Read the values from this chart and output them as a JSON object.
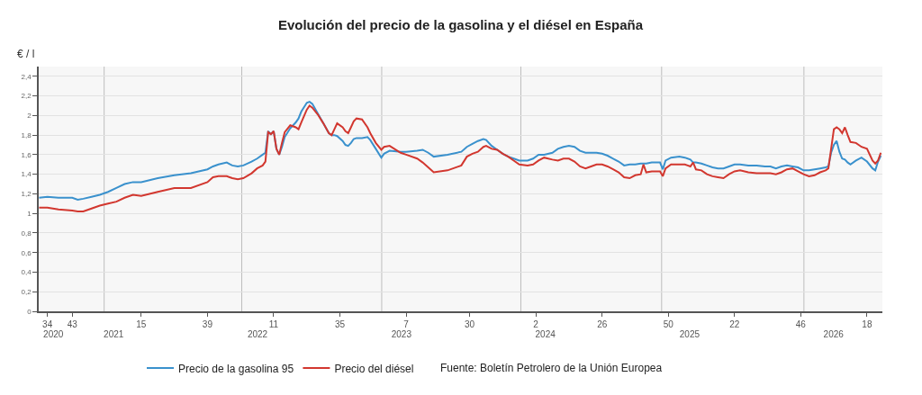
{
  "chart_data": {
    "type": "line",
    "title": "Evolución del precio de la gasolina y el diésel en España",
    "ylabel": "€ / l",
    "x": [
      "2020-07-27",
      "2020-08-17",
      "2020-09-14",
      "2020-10-19",
      "2020-11-02",
      "2020-11-16",
      "2020-12-07",
      "2020-12-28",
      "2021-01-18",
      "2021-02-08",
      "2021-03-01",
      "2021-03-22",
      "2021-04-12",
      "2021-05-24",
      "2021-07-05",
      "2021-08-16",
      "2021-09-27",
      "2021-10-11",
      "2021-10-25",
      "2021-11-15",
      "2021-11-29",
      "2021-12-13",
      "2021-12-27",
      "2022-01-17",
      "2022-01-31",
      "2022-02-14",
      "2022-02-21",
      "2022-02-28",
      "2022-03-07",
      "2022-03-14",
      "2022-03-21",
      "2022-03-28",
      "2022-04-04",
      "2022-04-11",
      "2022-04-25",
      "2022-05-09",
      "2022-05-16",
      "2022-05-23",
      "2022-06-06",
      "2022-06-13",
      "2022-06-20",
      "2022-07-04",
      "2022-07-18",
      "2022-08-01",
      "2022-08-08",
      "2022-08-15",
      "2022-08-22",
      "2022-09-05",
      "2022-09-12",
      "2022-09-19",
      "2022-09-26",
      "2022-10-03",
      "2022-10-10",
      "2022-10-24",
      "2022-11-07",
      "2022-11-14",
      "2022-11-28",
      "2022-12-12",
      "2022-12-19",
      "2023-01-02",
      "2023-01-30",
      "2023-02-13",
      "2023-03-13",
      "2023-03-27",
      "2023-04-10",
      "2023-04-24",
      "2023-05-29",
      "2023-07-03",
      "2023-07-17",
      "2023-07-31",
      "2023-08-14",
      "2023-08-28",
      "2023-09-04",
      "2023-09-18",
      "2023-10-02",
      "2023-10-16",
      "2023-10-30",
      "2023-11-13",
      "2023-11-27",
      "2023-12-18",
      "2024-01-01",
      "2024-01-15",
      "2024-01-29",
      "2024-02-19",
      "2024-03-04",
      "2024-03-18",
      "2024-04-01",
      "2024-04-15",
      "2024-04-29",
      "2024-05-13",
      "2024-05-27",
      "2024-06-10",
      "2024-06-24",
      "2024-07-08",
      "2024-07-22",
      "2024-08-05",
      "2024-08-19",
      "2024-09-02",
      "2024-09-16",
      "2024-09-30",
      "2024-10-07",
      "2024-10-14",
      "2024-10-28",
      "2024-11-18",
      "2024-11-25",
      "2024-12-02",
      "2024-12-16",
      "2025-01-06",
      "2025-01-20",
      "2025-02-03",
      "2025-02-10",
      "2025-02-17",
      "2025-03-03",
      "2025-03-17",
      "2025-03-31",
      "2025-04-14",
      "2025-04-28",
      "2025-05-12",
      "2025-05-26",
      "2025-06-09",
      "2025-06-30",
      "2025-07-21",
      "2025-08-11",
      "2025-08-25",
      "2025-09-08",
      "2025-09-22",
      "2025-10-06",
      "2025-10-20",
      "2025-11-03",
      "2025-11-17",
      "2025-12-01",
      "2025-12-15",
      "2025-12-29",
      "2026-01-12",
      "2026-01-19",
      "2026-01-26",
      "2026-02-02",
      "2026-02-09",
      "2026-02-16",
      "2026-02-23",
      "2026-03-02",
      "2026-03-09",
      "2026-03-16",
      "2026-03-30",
      "2026-04-13",
      "2026-04-27",
      "2026-05-11",
      "2026-05-18",
      "2026-05-25",
      "2026-06-01"
    ],
    "series": [
      {
        "name": "Precio de la gasolina 95",
        "color": "#3a91cd",
        "values": [
          1.16,
          1.17,
          1.16,
          1.16,
          1.14,
          1.15,
          1.17,
          1.19,
          1.22,
          1.26,
          1.3,
          1.32,
          1.32,
          1.36,
          1.39,
          1.41,
          1.45,
          1.48,
          1.5,
          1.52,
          1.49,
          1.48,
          1.49,
          1.53,
          1.56,
          1.6,
          1.62,
          1.84,
          1.81,
          1.84,
          1.66,
          1.6,
          1.68,
          1.78,
          1.87,
          1.93,
          1.97,
          2.04,
          2.13,
          2.14,
          2.12,
          2.02,
          1.92,
          1.82,
          1.8,
          1.8,
          1.79,
          1.74,
          1.7,
          1.69,
          1.72,
          1.76,
          1.77,
          1.77,
          1.78,
          1.75,
          1.66,
          1.57,
          1.61,
          1.64,
          1.63,
          1.63,
          1.64,
          1.65,
          1.62,
          1.58,
          1.6,
          1.63,
          1.68,
          1.71,
          1.74,
          1.76,
          1.75,
          1.69,
          1.65,
          1.61,
          1.58,
          1.56,
          1.54,
          1.54,
          1.56,
          1.6,
          1.6,
          1.62,
          1.66,
          1.68,
          1.69,
          1.68,
          1.64,
          1.62,
          1.62,
          1.62,
          1.61,
          1.59,
          1.56,
          1.53,
          1.49,
          1.5,
          1.5,
          1.51,
          1.51,
          1.51,
          1.52,
          1.52,
          1.45,
          1.54,
          1.57,
          1.58,
          1.57,
          1.55,
          1.52,
          1.52,
          1.51,
          1.49,
          1.47,
          1.46,
          1.46,
          1.48,
          1.5,
          1.5,
          1.49,
          1.49,
          1.48,
          1.48,
          1.46,
          1.48,
          1.49,
          1.48,
          1.47,
          1.44,
          1.44,
          1.45,
          1.46,
          1.47,
          1.48,
          1.62,
          1.7,
          1.74,
          1.63,
          1.56,
          1.55,
          1.52,
          1.5,
          1.54,
          1.57,
          1.53,
          1.46,
          1.44,
          1.53,
          1.59
        ]
      },
      {
        "name": "Precio del diésel",
        "color": "#d2372f",
        "values": [
          1.06,
          1.06,
          1.04,
          1.03,
          1.02,
          1.02,
          1.05,
          1.08,
          1.1,
          1.12,
          1.16,
          1.19,
          1.18,
          1.22,
          1.26,
          1.26,
          1.32,
          1.37,
          1.38,
          1.38,
          1.36,
          1.35,
          1.36,
          1.41,
          1.46,
          1.49,
          1.53,
          1.83,
          1.81,
          1.84,
          1.66,
          1.6,
          1.72,
          1.83,
          1.9,
          1.88,
          1.86,
          1.93,
          2.06,
          2.1,
          2.08,
          2.01,
          1.92,
          1.82,
          1.8,
          1.86,
          1.92,
          1.88,
          1.84,
          1.82,
          1.88,
          1.94,
          1.97,
          1.96,
          1.88,
          1.82,
          1.72,
          1.65,
          1.68,
          1.69,
          1.62,
          1.6,
          1.56,
          1.52,
          1.47,
          1.42,
          1.44,
          1.49,
          1.58,
          1.61,
          1.63,
          1.68,
          1.69,
          1.66,
          1.65,
          1.61,
          1.58,
          1.54,
          1.5,
          1.49,
          1.5,
          1.54,
          1.57,
          1.55,
          1.54,
          1.56,
          1.56,
          1.53,
          1.48,
          1.46,
          1.48,
          1.5,
          1.5,
          1.48,
          1.45,
          1.42,
          1.37,
          1.36,
          1.39,
          1.4,
          1.5,
          1.42,
          1.43,
          1.43,
          1.38,
          1.46,
          1.5,
          1.5,
          1.5,
          1.48,
          1.52,
          1.45,
          1.44,
          1.4,
          1.38,
          1.37,
          1.36,
          1.4,
          1.43,
          1.44,
          1.42,
          1.41,
          1.41,
          1.41,
          1.4,
          1.42,
          1.45,
          1.46,
          1.43,
          1.4,
          1.38,
          1.39,
          1.42,
          1.44,
          1.46,
          1.66,
          1.86,
          1.88,
          1.86,
          1.82,
          1.88,
          1.8,
          1.73,
          1.72,
          1.68,
          1.66,
          1.54,
          1.51,
          1.54,
          1.62
        ]
      }
    ],
    "xlim": [
      "2020-07-26",
      "2026-06-05"
    ],
    "xticks": [
      {
        "value": "2020-08-17",
        "label": "34"
      },
      {
        "value": "2020-10-19",
        "label": "43"
      },
      {
        "value": "2021-04-12",
        "label": "15"
      },
      {
        "value": "2021-09-27",
        "label": "39"
      },
      {
        "value": "2022-03-14",
        "label": "11"
      },
      {
        "value": "2022-08-29",
        "label": "35"
      },
      {
        "value": "2023-02-13",
        "label": "7"
      },
      {
        "value": "2023-07-24",
        "label": "30"
      },
      {
        "value": "2024-01-08",
        "label": "2"
      },
      {
        "value": "2024-06-24",
        "label": "26"
      },
      {
        "value": "2024-12-09",
        "label": "50"
      },
      {
        "value": "2025-05-26",
        "label": "22"
      },
      {
        "value": "2025-11-10",
        "label": "46"
      },
      {
        "value": "2026-04-27",
        "label": "18"
      }
    ],
    "x2lim": [
      "2020-07-26",
      "2026-06-05"
    ],
    "x2ticks": [
      {
        "value": "2020-09",
        "label": "2020"
      },
      {
        "value": "2021-02",
        "label": "2021"
      },
      {
        "value": "2022-02",
        "label": "2022"
      },
      {
        "value": "2023-02",
        "label": "2023"
      },
      {
        "value": "2024-02",
        "label": "2024"
      },
      {
        "value": "2025-02",
        "label": "2025"
      },
      {
        "value": "2026-02",
        "label": "2026"
      }
    ],
    "ylim": [
      0,
      2.5
    ],
    "yticks": [
      0,
      {
        "value": 0.2,
        "label": "0,2"
      },
      {
        "value": 0.4,
        "label": "0,4"
      },
      {
        "value": 0.6,
        "label": "0,6"
      },
      {
        "value": 0.8,
        "label": "0,8"
      },
      1,
      {
        "value": 1.2,
        "label": "1,2"
      },
      {
        "value": 1.4,
        "label": "1,4"
      },
      {
        "value": 1.6,
        "label": "1,6"
      },
      {
        "value": 1.8,
        "label": "1,8"
      },
      2,
      {
        "value": 2.2,
        "label": "2,2"
      },
      {
        "value": 2.4,
        "label": "2,4"
      }
    ],
    "grid": "y",
    "legend": "bottom",
    "ref_lines": [
      {
        "axis": "x",
        "value": "2021-01-08",
        "color": "#bdbdbd"
      },
      {
        "axis": "x",
        "value": "2021-12-23",
        "color": "#bdbdbd"
      },
      {
        "axis": "x",
        "value": "2022-12-13",
        "color": "#bdbdbd"
      },
      {
        "axis": "x",
        "value": "2023-12-01",
        "color": "#bdbdbd"
      },
      {
        "axis": "x",
        "value": "2024-11-22",
        "color": "#bdbdbd"
      },
      {
        "axis": "x",
        "value": "2025-11-18",
        "color": "#bdbdbd"
      }
    ],
    "annotations": [
      "Fuente: Boletín Petrolero de la Unión Europea"
    ]
  }
}
